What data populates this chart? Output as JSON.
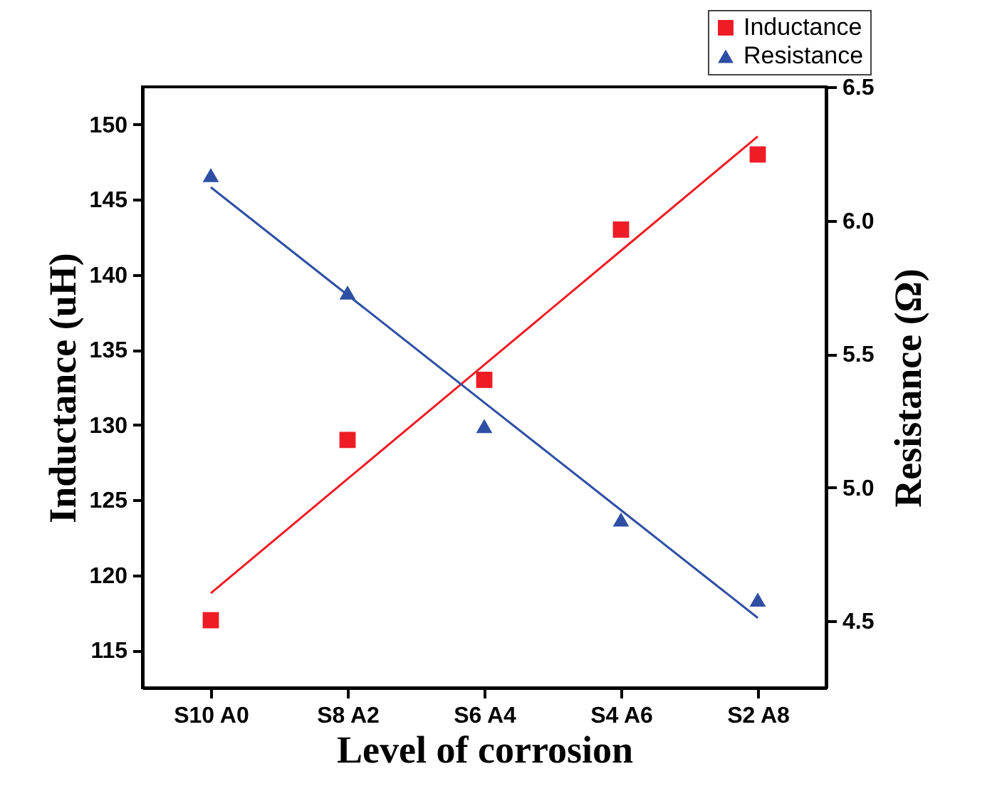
{
  "chart_data": {
    "type": "scatter",
    "xlabel": "Level of corrosion",
    "ylabel": "Inductance (uH)",
    "y2label": "Resistance (Ω)",
    "categories": [
      "S10 A0",
      "S8 A2",
      "S6 A4",
      "S4 A6",
      "S2 A8"
    ],
    "ylim": [
      112.5,
      152.5
    ],
    "yticks": [
      115,
      120,
      125,
      130,
      135,
      140,
      145,
      150
    ],
    "y2lim": [
      4.25,
      6.5
    ],
    "y2ticks": [
      4.5,
      {
        "value": 5,
        "label": "5.0"
      },
      5.5,
      {
        "value": 6,
        "label": "6.0"
      },
      6.5
    ],
    "grid": false,
    "legend": "top right",
    "series": [
      {
        "name": "Inductance",
        "marker": "square",
        "color": "#ee1c25",
        "values": [
          117,
          129,
          133,
          143,
          148
        ]
      },
      {
        "name": "Resistance",
        "marker": "triangle",
        "axis": "y2",
        "color": "#2e4fa3",
        "values": [
          6.17,
          5.73,
          5.23,
          4.88,
          4.58
        ]
      },
      {
        "type": "line",
        "color": "#ee1c25",
        "values": [
          118.8,
          126.4,
          134.0,
          141.6,
          149.2
        ]
      },
      {
        "type": "line",
        "axis": "y2",
        "color": "#2e4fa3",
        "values": [
          6.124,
          5.721,
          5.318,
          4.915,
          4.512
        ]
      }
    ]
  }
}
